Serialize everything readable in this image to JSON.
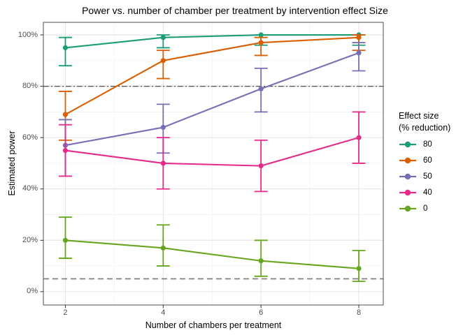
{
  "chart_data": {
    "type": "line",
    "title": "Power vs. number of chamber per treatment by intervention effect Size",
    "xlabel": "Number of chambers per treatment",
    "ylabel": "Estimated power",
    "x": [
      2,
      4,
      6,
      8
    ],
    "x_tick_labels": [
      "2",
      "4",
      "6",
      "8"
    ],
    "x_minor": [
      3,
      5,
      7
    ],
    "y_tick_values": [
      0,
      20,
      40,
      60,
      80,
      100
    ],
    "y_tick_labels": [
      "0%",
      "20%",
      "40%",
      "60%",
      "80%",
      "100%"
    ],
    "y_minor": [
      10,
      30,
      50,
      70,
      90
    ],
    "xlim": [
      1.55,
      8.5
    ],
    "ylim": [
      -5.2,
      104.9
    ],
    "grid": true,
    "legend_position": "right",
    "legend_title_line1": "Effect size",
    "legend_title_line2": "(% reduction)",
    "reference_lines": [
      {
        "y": 80,
        "style": "dashdot",
        "color": "#4d4d4d"
      },
      {
        "y": 5,
        "style": "dashed",
        "color": "#808080"
      }
    ],
    "series": [
      {
        "name": "80",
        "color": "#1B9E77",
        "values": [
          95,
          99,
          100,
          100
        ],
        "err_low": [
          88,
          95,
          96,
          96
        ],
        "err_high": [
          99,
          100,
          100,
          100
        ]
      },
      {
        "name": "60",
        "color": "#D95F02",
        "values": [
          69,
          90,
          97,
          99
        ],
        "err_low": [
          59,
          83,
          92,
          94
        ],
        "err_high": [
          78,
          94,
          99,
          100
        ]
      },
      {
        "name": "50",
        "color": "#7570B3",
        "values": [
          57,
          64,
          79,
          93
        ],
        "err_low": [
          45,
          54,
          70,
          86
        ],
        "err_high": [
          67,
          73,
          87,
          97
        ]
      },
      {
        "name": "40",
        "color": "#E7298A",
        "values": [
          55,
          50,
          49,
          60
        ],
        "err_low": [
          45,
          40,
          39,
          50
        ],
        "err_high": [
          65,
          60,
          59,
          70
        ]
      },
      {
        "name": "0",
        "color": "#66A61E",
        "values": [
          20,
          17,
          12,
          9
        ],
        "err_low": [
          13,
          10,
          6,
          4
        ],
        "err_high": [
          29,
          26,
          20,
          16
        ]
      }
    ],
    "style": {
      "panel_border": "#4d4d4d",
      "grid_major": "#e4e4e4",
      "grid_minor": "#f0f0f0",
      "tick_color": "#333333"
    }
  }
}
